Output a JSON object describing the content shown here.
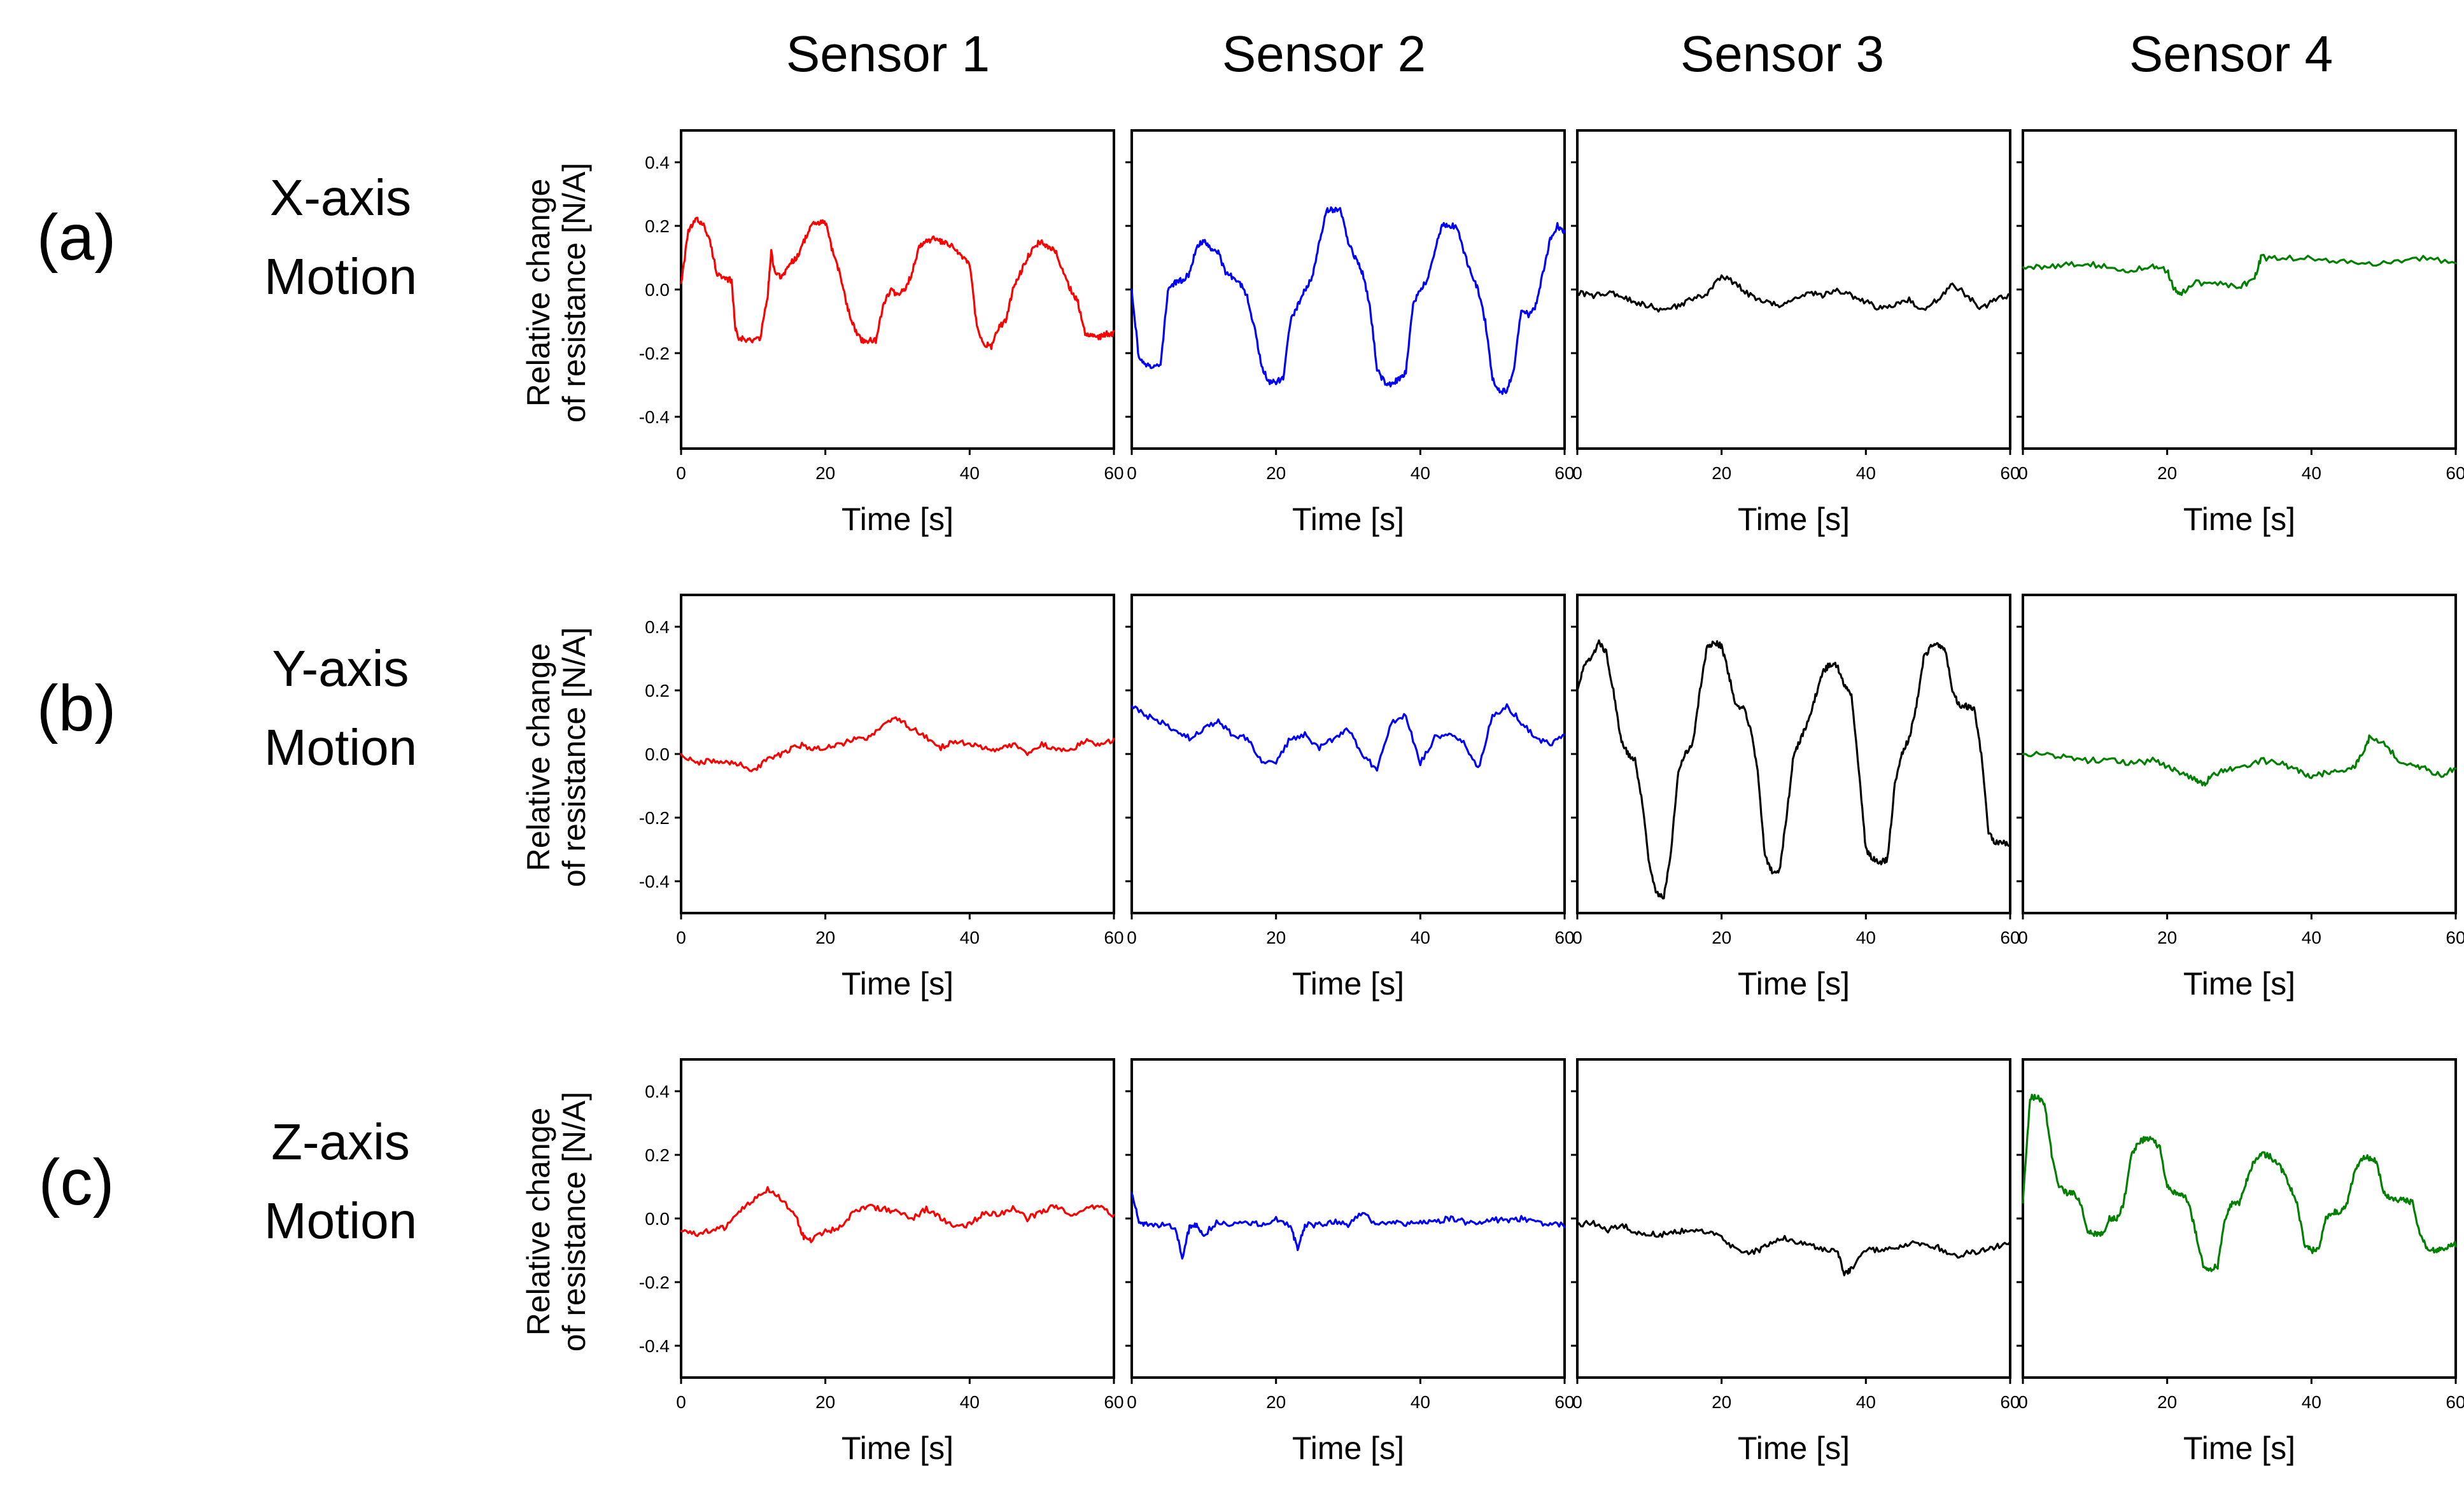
{
  "figure": {
    "column_titles": [
      "Sensor 1",
      "Sensor 2",
      "Sensor 3",
      "Sensor 4"
    ],
    "rows": [
      {
        "label": "(a)",
        "title_line1": "X-axis",
        "title_line2": "Motion"
      },
      {
        "label": "(b)",
        "title_line1": "Y-axis",
        "title_line2": "Motion"
      },
      {
        "label": "(c)",
        "title_line1": "Z-axis",
        "title_line2": "Motion"
      }
    ],
    "ylabel_line1": "Relative change",
    "ylabel_line2": "of resistance [N/A]",
    "xlabel": "Time [s]"
  },
  "chart_data": {
    "type": "line",
    "layout": "grid 3 rows x 4 columns",
    "title": "",
    "xlabel": "Time [s]",
    "ylabel": "Relative change of resistance [N/A]",
    "xlim": [
      0,
      60
    ],
    "ylim": [
      -0.5,
      0.5
    ],
    "x_ticks": [
      0,
      20,
      40,
      60
    ],
    "y_ticks": [
      -0.4,
      -0.2,
      0.0,
      0.2,
      0.4
    ],
    "y_tick_labels": [
      "-0.4",
      "-0.2",
      "0.0",
      "0.2",
      "0.4"
    ],
    "grid": false,
    "sensor_colors": {
      "Sensor 1": "#ff0000",
      "Sensor 2": "#0000ff",
      "Sensor 3": "#000000",
      "Sensor 4": "#008000"
    },
    "panels": [
      {
        "row": "X-axis Motion",
        "sensor": "Sensor 1",
        "color": "#ff0000",
        "x": [
          0,
          1,
          2,
          3,
          4,
          5,
          6,
          7,
          7.5,
          8,
          9,
          10,
          11,
          12,
          12.5,
          13,
          14,
          15,
          16,
          17,
          18,
          19,
          20,
          21,
          22,
          23,
          24,
          25,
          26,
          27,
          28,
          29,
          30,
          31,
          32,
          33,
          34,
          35,
          36,
          37,
          38,
          39,
          40,
          41,
          42,
          43,
          44,
          45,
          46,
          47,
          48,
          49,
          50,
          51,
          52,
          53,
          54,
          55,
          56,
          57,
          58,
          59,
          60
        ],
        "y": [
          0.02,
          0.18,
          0.22,
          0.21,
          0.15,
          0.05,
          0.03,
          0.03,
          -0.12,
          -0.15,
          -0.16,
          -0.16,
          -0.15,
          -0.02,
          0.12,
          0.05,
          0.04,
          0.08,
          0.1,
          0.15,
          0.2,
          0.21,
          0.21,
          0.12,
          0.05,
          -0.05,
          -0.12,
          -0.16,
          -0.16,
          -0.16,
          -0.05,
          0.0,
          -0.02,
          0.0,
          0.05,
          0.14,
          0.15,
          0.16,
          0.15,
          0.14,
          0.13,
          0.1,
          0.08,
          -0.12,
          -0.17,
          -0.18,
          -0.12,
          -0.1,
          0.0,
          0.05,
          0.1,
          0.14,
          0.15,
          0.13,
          0.12,
          0.05,
          0.0,
          -0.04,
          -0.14,
          -0.14,
          -0.15,
          -0.14,
          -0.14
        ]
      },
      {
        "row": "X-axis Motion",
        "sensor": "Sensor 2",
        "color": "#0000ff",
        "x": [
          0,
          1,
          2,
          3,
          4,
          5,
          6,
          7,
          8,
          9,
          10,
          11,
          12,
          13,
          14,
          15,
          16,
          17,
          18,
          19,
          20,
          21,
          22,
          23,
          24,
          25,
          26,
          27,
          28,
          29,
          30,
          31,
          32,
          33,
          34,
          35,
          36,
          37,
          38,
          39,
          40,
          41,
          42,
          43,
          44,
          45,
          46,
          47,
          48,
          49,
          50,
          51,
          52,
          53,
          54,
          55,
          56,
          57,
          58,
          59,
          60
        ],
        "y": [
          0.0,
          -0.22,
          -0.24,
          -0.24,
          -0.24,
          0.0,
          0.02,
          0.03,
          0.05,
          0.14,
          0.15,
          0.13,
          0.12,
          0.05,
          0.04,
          0.02,
          -0.02,
          -0.12,
          -0.24,
          -0.29,
          -0.29,
          -0.28,
          -0.1,
          -0.05,
          0.0,
          0.04,
          0.15,
          0.25,
          0.25,
          0.25,
          0.15,
          0.1,
          0.05,
          -0.05,
          -0.25,
          -0.29,
          -0.3,
          -0.28,
          -0.26,
          -0.05,
          0.0,
          0.03,
          0.12,
          0.2,
          0.2,
          0.2,
          0.12,
          0.05,
          0.0,
          -0.1,
          -0.28,
          -0.32,
          -0.32,
          -0.25,
          -0.06,
          -0.08,
          -0.05,
          0.05,
          0.16,
          0.2,
          0.18
        ]
      },
      {
        "row": "X-axis Motion",
        "sensor": "Sensor 3",
        "color": "#000000",
        "x": [
          0,
          2,
          4,
          6,
          8,
          10,
          12,
          14,
          16,
          18,
          20,
          22,
          24,
          26,
          28,
          30,
          32,
          34,
          36,
          38,
          40,
          42,
          44,
          46,
          48,
          50,
          52,
          54,
          56,
          58,
          60
        ],
        "y": [
          -0.01,
          -0.02,
          -0.01,
          -0.02,
          -0.04,
          -0.05,
          -0.07,
          -0.05,
          -0.03,
          -0.01,
          0.04,
          0.02,
          -0.02,
          -0.04,
          -0.05,
          -0.03,
          -0.01,
          -0.02,
          0.0,
          -0.02,
          -0.04,
          -0.06,
          -0.05,
          -0.03,
          -0.07,
          -0.03,
          0.02,
          -0.02,
          -0.06,
          -0.03,
          -0.02
        ]
      },
      {
        "row": "X-axis Motion",
        "sensor": "Sensor 4",
        "color": "#008000",
        "x": [
          0,
          3,
          6,
          9,
          12,
          15,
          18,
          20,
          21,
          22,
          24,
          27,
          30,
          32,
          33,
          36,
          40,
          44,
          48,
          52,
          56,
          60
        ],
        "y": [
          0.07,
          0.07,
          0.08,
          0.08,
          0.07,
          0.06,
          0.07,
          0.06,
          0.0,
          -0.01,
          0.02,
          0.02,
          0.01,
          0.03,
          0.1,
          0.1,
          0.1,
          0.09,
          0.08,
          0.09,
          0.1,
          0.08
        ]
      },
      {
        "row": "Y-axis Motion",
        "sensor": "Sensor 1",
        "color": "#ff0000",
        "x": [
          0,
          2,
          4,
          6,
          8,
          10,
          12,
          14,
          16,
          18,
          20,
          22,
          24,
          26,
          28,
          30,
          32,
          34,
          36,
          38,
          40,
          42,
          44,
          46,
          48,
          50,
          52,
          54,
          56,
          58,
          60
        ],
        "y": [
          0.0,
          -0.03,
          -0.02,
          -0.03,
          -0.03,
          -0.05,
          -0.02,
          0.0,
          0.03,
          0.02,
          0.02,
          0.03,
          0.05,
          0.05,
          0.09,
          0.11,
          0.08,
          0.05,
          0.02,
          0.04,
          0.03,
          0.02,
          0.01,
          0.03,
          0.0,
          0.03,
          0.02,
          0.01,
          0.04,
          0.03,
          0.04
        ]
      },
      {
        "row": "Y-axis Motion",
        "sensor": "Sensor 2",
        "color": "#0000ff",
        "x": [
          0,
          2,
          4,
          6,
          8,
          10,
          12,
          14,
          16,
          18,
          20,
          22,
          24,
          26,
          28,
          30,
          32,
          34,
          36,
          38,
          40,
          42,
          44,
          46,
          48,
          50,
          52,
          54,
          56,
          58,
          60
        ],
        "y": [
          0.15,
          0.12,
          0.1,
          0.07,
          0.05,
          0.08,
          0.1,
          0.06,
          0.05,
          -0.02,
          -0.03,
          0.05,
          0.06,
          0.02,
          0.05,
          0.08,
          0.0,
          -0.05,
          0.1,
          0.12,
          -0.03,
          0.05,
          0.06,
          0.04,
          -0.05,
          0.12,
          0.15,
          0.1,
          0.05,
          0.03,
          0.06
        ]
      },
      {
        "row": "Y-axis Motion",
        "sensor": "Sensor 3",
        "color": "#000000",
        "x": [
          0,
          1,
          2,
          3,
          4,
          5,
          6,
          7,
          8,
          9,
          10,
          11,
          12,
          13,
          14,
          15,
          16,
          17,
          18,
          19,
          20,
          21,
          22,
          23,
          24,
          25,
          26,
          27,
          28,
          29,
          30,
          31,
          32,
          33,
          34,
          35,
          36,
          37,
          38,
          39,
          40,
          41,
          42,
          43,
          44,
          45,
          46,
          47,
          48,
          49,
          50,
          51,
          52,
          53,
          54,
          55,
          56,
          57,
          58,
          59,
          60
        ],
        "y": [
          0.2,
          0.28,
          0.3,
          0.35,
          0.32,
          0.2,
          0.05,
          0.0,
          -0.02,
          -0.15,
          -0.35,
          -0.44,
          -0.45,
          -0.3,
          -0.05,
          0.0,
          0.03,
          0.2,
          0.34,
          0.35,
          0.34,
          0.25,
          0.15,
          0.15,
          0.08,
          -0.05,
          -0.32,
          -0.37,
          -0.37,
          -0.2,
          0.0,
          0.05,
          0.1,
          0.18,
          0.26,
          0.28,
          0.28,
          0.22,
          0.18,
          -0.05,
          -0.3,
          -0.33,
          -0.34,
          -0.33,
          -0.1,
          0.0,
          0.05,
          0.15,
          0.3,
          0.34,
          0.34,
          0.33,
          0.2,
          0.15,
          0.15,
          0.14,
          0.0,
          -0.25,
          -0.28,
          -0.28,
          -0.29
        ]
      },
      {
        "row": "Y-axis Motion",
        "sensor": "Sensor 4",
        "color": "#008000",
        "x": [
          0,
          3,
          6,
          9,
          12,
          15,
          18,
          20,
          22,
          24,
          25,
          26,
          28,
          30,
          33,
          36,
          38,
          40,
          42,
          44,
          46,
          47,
          48,
          50,
          52,
          54,
          56,
          58,
          60
        ],
        "y": [
          0.0,
          0.0,
          -0.01,
          -0.02,
          -0.02,
          -0.03,
          -0.02,
          -0.04,
          -0.06,
          -0.08,
          -0.1,
          -0.07,
          -0.05,
          -0.04,
          -0.02,
          -0.03,
          -0.05,
          -0.07,
          -0.06,
          -0.05,
          -0.04,
          0.0,
          0.05,
          0.04,
          -0.02,
          -0.03,
          -0.05,
          -0.07,
          -0.04
        ]
      },
      {
        "row": "Z-axis Motion",
        "sensor": "Sensor 1",
        "color": "#ff0000",
        "x": [
          0,
          2,
          4,
          6,
          8,
          10,
          12,
          14,
          16,
          17,
          18,
          20,
          22,
          24,
          26,
          28,
          30,
          32,
          34,
          36,
          38,
          40,
          42,
          44,
          46,
          48,
          50,
          52,
          54,
          56,
          58,
          60
        ],
        "y": [
          -0.04,
          -0.05,
          -0.04,
          -0.03,
          0.02,
          0.06,
          0.09,
          0.06,
          0.0,
          -0.06,
          -0.07,
          -0.04,
          -0.03,
          0.02,
          0.04,
          0.03,
          0.02,
          0.0,
          0.03,
          0.0,
          -0.03,
          -0.02,
          0.02,
          0.01,
          0.03,
          0.0,
          0.02,
          0.04,
          0.01,
          0.03,
          0.04,
          0.01
        ]
      },
      {
        "row": "Z-axis Motion",
        "sensor": "Sensor 2",
        "color": "#0000ff",
        "x": [
          0,
          1,
          2,
          4,
          6,
          7,
          8,
          9,
          10,
          12,
          14,
          16,
          18,
          20,
          22,
          23,
          24,
          26,
          28,
          30,
          32,
          34,
          36,
          38,
          40,
          42,
          44,
          46,
          48,
          50,
          52,
          54,
          56,
          58,
          60
        ],
        "y": [
          0.08,
          -0.01,
          -0.02,
          -0.02,
          -0.03,
          -0.12,
          -0.03,
          -0.02,
          -0.05,
          -0.01,
          -0.02,
          -0.01,
          -0.02,
          0.0,
          -0.02,
          -0.1,
          -0.02,
          -0.02,
          -0.01,
          -0.02,
          0.02,
          -0.02,
          -0.01,
          -0.02,
          -0.01,
          -0.01,
          0.0,
          -0.01,
          -0.02,
          0.0,
          -0.01,
          0.0,
          -0.01,
          -0.02,
          -0.02
        ]
      },
      {
        "row": "Z-axis Motion",
        "sensor": "Sensor 3",
        "color": "#000000",
        "x": [
          0,
          2,
          4,
          6,
          8,
          10,
          12,
          14,
          16,
          18,
          20,
          22,
          24,
          26,
          28,
          30,
          32,
          34,
          36,
          37,
          38,
          40,
          42,
          44,
          46,
          48,
          50,
          52,
          54,
          56,
          58,
          60
        ],
        "y": [
          -0.02,
          -0.01,
          -0.04,
          -0.02,
          -0.04,
          -0.05,
          -0.05,
          -0.04,
          -0.04,
          -0.04,
          -0.06,
          -0.1,
          -0.11,
          -0.09,
          -0.06,
          -0.07,
          -0.08,
          -0.1,
          -0.1,
          -0.17,
          -0.16,
          -0.1,
          -0.1,
          -0.09,
          -0.08,
          -0.08,
          -0.09,
          -0.12,
          -0.11,
          -0.1,
          -0.09,
          -0.07
        ]
      },
      {
        "row": "Z-axis Motion",
        "sensor": "Sensor 4",
        "color": "#008000",
        "x": [
          0,
          1,
          2,
          3,
          4,
          5,
          6,
          7,
          8,
          9,
          10,
          11,
          12,
          13,
          14,
          15,
          16,
          17,
          18,
          19,
          20,
          21,
          22,
          23,
          24,
          25,
          26,
          27,
          28,
          29,
          30,
          31,
          32,
          33,
          34,
          35,
          36,
          37,
          38,
          39,
          40,
          41,
          42,
          43,
          44,
          45,
          46,
          47,
          48,
          49,
          50,
          51,
          52,
          53,
          54,
          55,
          56,
          57,
          58,
          59,
          60
        ],
        "y": [
          0.05,
          0.38,
          0.38,
          0.36,
          0.2,
          0.1,
          0.08,
          0.08,
          0.05,
          -0.04,
          -0.05,
          -0.05,
          0.0,
          0.0,
          0.05,
          0.2,
          0.24,
          0.25,
          0.25,
          0.22,
          0.1,
          0.08,
          0.08,
          0.05,
          -0.05,
          -0.15,
          -0.16,
          -0.15,
          0.0,
          0.05,
          0.05,
          0.12,
          0.18,
          0.2,
          0.2,
          0.18,
          0.15,
          0.1,
          0.05,
          -0.08,
          -0.1,
          -0.1,
          0.0,
          0.02,
          0.02,
          0.05,
          0.15,
          0.19,
          0.19,
          0.18,
          0.08,
          0.06,
          0.06,
          0.06,
          0.05,
          -0.05,
          -0.09,
          -0.1,
          -0.1,
          -0.09,
          -0.08
        ]
      }
    ]
  }
}
